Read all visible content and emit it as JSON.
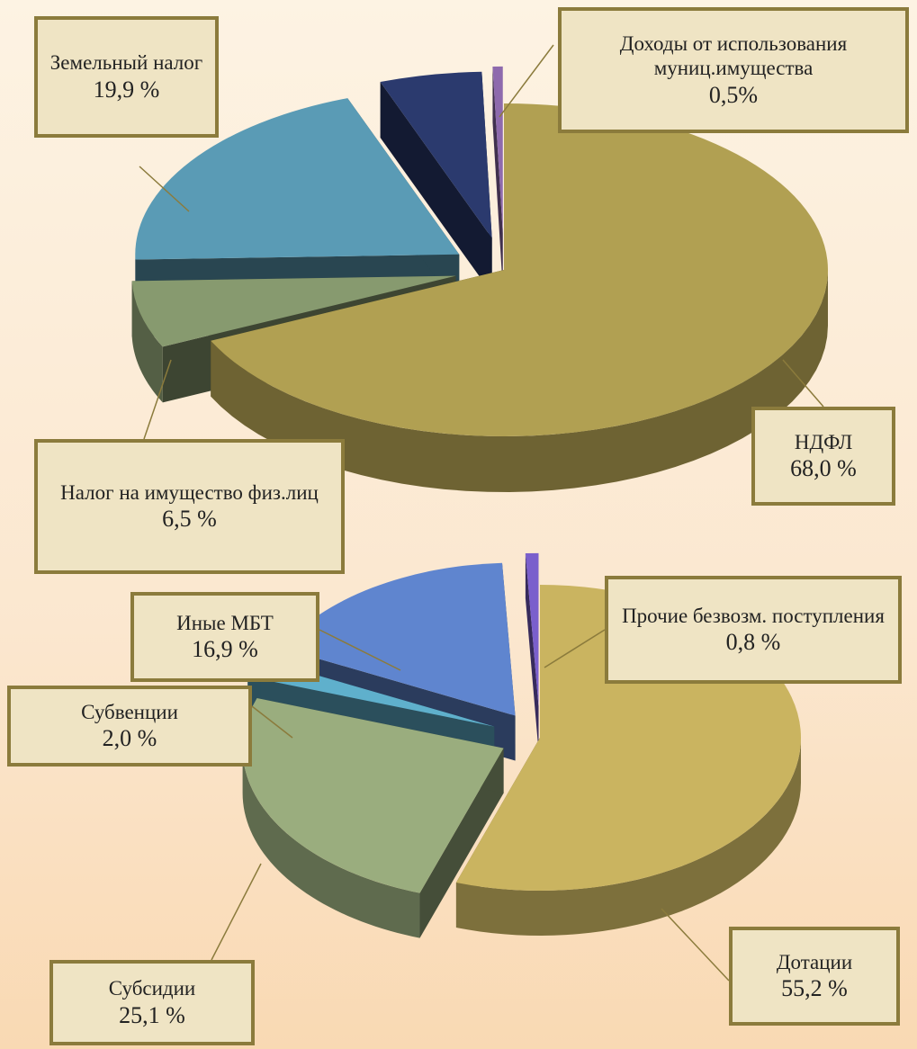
{
  "chart_data": [
    {
      "type": "pie",
      "categories": [
        "НДФЛ",
        "Налог на имущество физ.лиц",
        "Земельный налог",
        null,
        "Доходы от использования муниц.имущества"
      ],
      "values": [
        68.0,
        6.5,
        19.9,
        5.1,
        0.5
      ],
      "value_labels": [
        "68,0 %",
        "6,5 %",
        "19,9 %",
        null,
        "0,5%"
      ],
      "colors": [
        "#b1a052",
        "#879a6f",
        "#5a9bb5",
        "#2b3a6e",
        "#8e6aad"
      ]
    },
    {
      "type": "pie",
      "categories": [
        "Дотации",
        "Субсидии",
        "Субвенции",
        "Иные МБТ",
        "Прочие безвозм. поступления"
      ],
      "values": [
        55.2,
        25.1,
        2.0,
        16.9,
        0.8
      ],
      "value_labels": [
        "55,2 %",
        "25,1 %",
        "2,0 %",
        "16,9 %",
        "0,8 %"
      ],
      "colors": [
        "#cab460",
        "#9aad7e",
        "#5fb0cc",
        "#5f85cf",
        "#7a5fcc"
      ]
    }
  ]
}
